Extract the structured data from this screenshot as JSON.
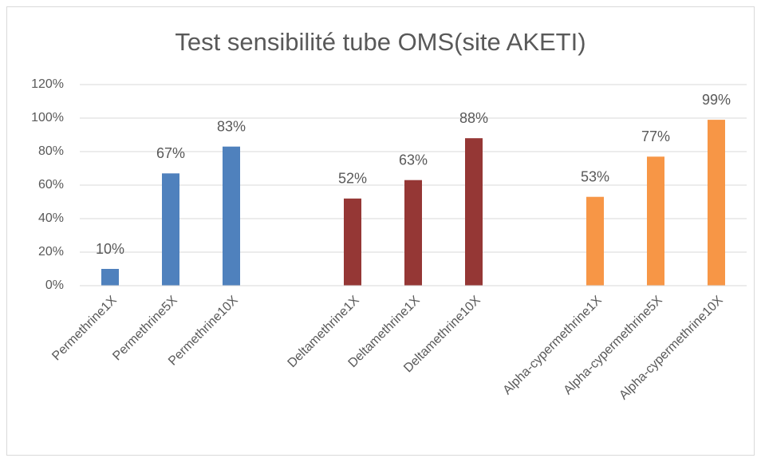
{
  "chart_data": {
    "type": "bar",
    "title": "Test sensibilité tube OMS(site AKETI)",
    "categories": [
      "Permethrine1X",
      "Permethrine5X",
      "Permethrine10X",
      null,
      "Deltamethrine1X",
      "Deltamethrine1X",
      "Deltamethrine10X",
      null,
      "Alpha-cypermethrine1X",
      "Alpha-cypermethrine5X",
      "Alpha-cypermethrine10X"
    ],
    "values": [
      10,
      67,
      83,
      null,
      52,
      63,
      88,
      null,
      53,
      77,
      99
    ],
    "value_labels": [
      "10%",
      "67%",
      "83%",
      null,
      "52%",
      "63%",
      "88%",
      null,
      "53%",
      "77%",
      "99%"
    ],
    "colors": [
      "#4f81bd",
      "#4f81bd",
      "#4f81bd",
      null,
      "#953735",
      "#953735",
      "#953735",
      null,
      "#f79646",
      "#f79646",
      "#f79646"
    ],
    "ylim": [
      0,
      120
    ],
    "yticks": [
      {
        "value": 0,
        "label": "0%"
      },
      {
        "value": 20,
        "label": "20%"
      },
      {
        "value": 40,
        "label": "40%"
      },
      {
        "value": 60,
        "label": "60%"
      },
      {
        "value": 80,
        "label": "80%"
      },
      {
        "value": 100,
        "label": "100%"
      },
      {
        "value": 120,
        "label": "120%"
      }
    ],
    "grid": true
  }
}
